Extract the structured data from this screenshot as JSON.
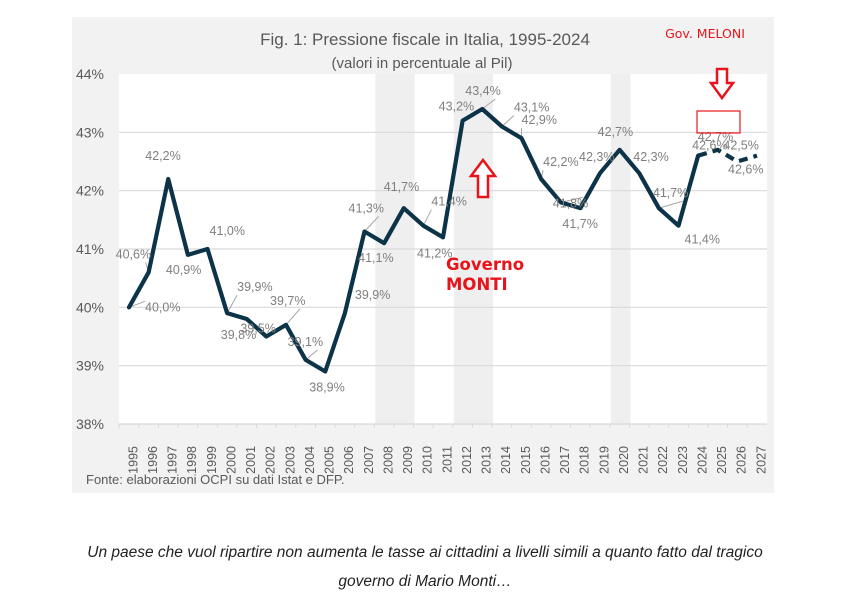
{
  "chart_data": {
    "type": "line",
    "title": "Fig. 1: Pressione fiscale in Italia, 1995-2024",
    "subtitle": "(valori in percentuale al Pil)",
    "xlabel": "",
    "ylabel": "",
    "ylim": [
      38,
      44
    ],
    "yticks": [
      38,
      39,
      40,
      41,
      42,
      43,
      44
    ],
    "ytick_labels": [
      "38%",
      "39%",
      "40%",
      "41%",
      "42%",
      "43%",
      "44%"
    ],
    "grid": true,
    "x": [
      1995,
      1996,
      1997,
      1998,
      1999,
      2000,
      2001,
      2002,
      2003,
      2004,
      2005,
      2006,
      2007,
      2008,
      2009,
      2010,
      2011,
      2012,
      2013,
      2014,
      2015,
      2016,
      2017,
      2018,
      2019,
      2020,
      2021,
      2022,
      2023,
      2024,
      2025,
      2026,
      2027
    ],
    "series": [
      {
        "name": "Pressione fiscale",
        "color": "#0d3349",
        "values": [
          40.0,
          40.6,
          42.2,
          40.9,
          41.0,
          39.9,
          39.8,
          39.5,
          39.7,
          39.1,
          38.9,
          39.9,
          41.3,
          41.1,
          41.7,
          41.4,
          41.2,
          43.2,
          43.4,
          43.1,
          42.9,
          42.2,
          41.8,
          41.7,
          42.3,
          42.7,
          42.3,
          41.7,
          41.4,
          42.6,
          42.7,
          42.5,
          42.6
        ],
        "data_labels": [
          "40,0%",
          "40,6%",
          "42,2%",
          "40,9%",
          "41,0%",
          "39,9%",
          "39,8%",
          "39,5%",
          "39,7%",
          "39,1%",
          "38,9%",
          "39,9%",
          "41,3%",
          "41,1%",
          "41,7%",
          "41,4%",
          "41,2%",
          "43,2%",
          "43,4%",
          "43,1%",
          "42,9%",
          "42,2%",
          "41,8%",
          "41,7%",
          "42,3%",
          "42,7%",
          "42,3%",
          "41,7%",
          "41,4%",
          "42,6%",
          "42,7%",
          "42,5%",
          "42,6%"
        ],
        "dashed_from_year": 2024
      }
    ],
    "shaded_periods": [
      [
        2008,
        2009
      ],
      [
        2012,
        2013
      ],
      [
        2020,
        2020
      ]
    ],
    "annotations": [
      {
        "text": "Governo",
        "text2": "MONTI",
        "color": "#e8141c",
        "points_to_year": 2013
      },
      {
        "text": "Gov. MELONI",
        "color": "#e8141c",
        "points_to_year": 2025,
        "highlight_label": "42,7%"
      }
    ],
    "source": "Fonte: elaborazioni OCPI su dati Istat e DFP."
  },
  "caption": {
    "line1": "Un paese che vuol ripartire non aumenta le tasse ai cittadini a livelli simili a quanto fatto dal tragico",
    "line2": "governo di Mario Monti…"
  }
}
